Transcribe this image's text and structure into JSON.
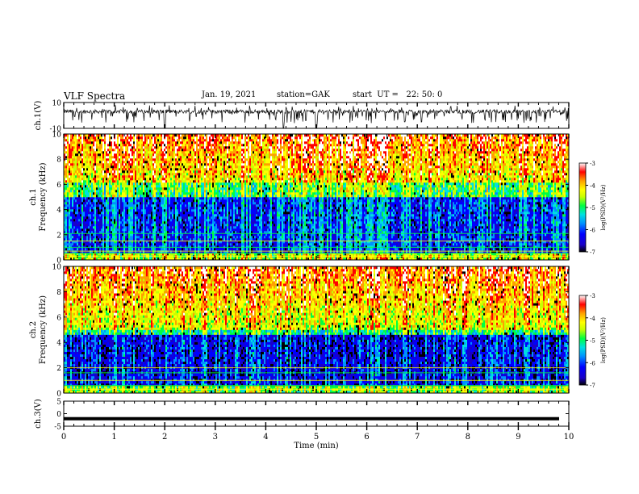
{
  "header": {
    "title": "VLF Spectra",
    "date": "Jan. 19, 2021",
    "station": "station=GAK",
    "start_time": "start  UT =   22: 50: 0"
  },
  "colors": {
    "spectrum_scale": [
      "#000000",
      "#1a00c8",
      "#0000ff",
      "#0090ff",
      "#00e0e0",
      "#00ff40",
      "#c8ff00",
      "#ffff00",
      "#ffa000",
      "#ff0000",
      "#ffffff"
    ]
  },
  "chart_data": [
    {
      "type": "line",
      "name": "ch1-waveform",
      "ylabel": "ch.1(V)",
      "ylim": [
        -10,
        10
      ],
      "yticks": [
        "10",
        "-10"
      ],
      "x_range": [
        0,
        10
      ],
      "baseline_level": 3,
      "variability": "noisy trace oscillating around +3 V with frequent downward spikes to about -6 V",
      "dropout_times_min": [
        2.0,
        4.35,
        5.0
      ]
    },
    {
      "type": "heatmap",
      "name": "ch1-spectrogram",
      "ylabel": "ch.1\nFrequency  (kHz)",
      "xlim": [
        0,
        10
      ],
      "ylim": [
        0,
        10
      ],
      "yticks": [
        "0",
        "2",
        "4",
        "6",
        "8",
        "10"
      ],
      "colorbar": {
        "label": "log(PSD)(V²/Hz)",
        "range": [
          -7,
          -3
        ],
        "ticks": [
          "-3",
          "-4",
          "-5",
          "-6",
          "-7"
        ]
      },
      "intense_band_kHz": [
        6,
        10
      ],
      "weak_band_kHz": [
        0.5,
        5
      ],
      "narrowband_lines_kHz": [
        0.3,
        0.5,
        0.7,
        1.0,
        1.5,
        2.1
      ]
    },
    {
      "type": "heatmap",
      "name": "ch2-spectrogram",
      "ylabel": "ch.2\nFrequency  (kHz)",
      "xlim": [
        0,
        10
      ],
      "ylim": [
        0,
        10
      ],
      "yticks": [
        "0",
        "2",
        "4",
        "6",
        "8",
        "10"
      ],
      "colorbar": {
        "label": "log(PSD)(V²/Hz)",
        "range": [
          -7,
          -3
        ],
        "ticks": [
          "-3",
          "-4",
          "-5",
          "-6",
          "-7"
        ]
      },
      "intense_band_kHz": [
        5,
        10
      ],
      "weak_band_kHz": [
        0.5,
        4.5
      ],
      "narrowband_lines_kHz": [
        0.3,
        0.6,
        1.0,
        1.6,
        2.0
      ]
    },
    {
      "type": "line",
      "name": "ch3-waveform",
      "ylabel": "ch.3(V)",
      "ylim": [
        -5,
        5
      ],
      "yticks": [
        "5",
        "0",
        "-5"
      ],
      "x_range": [
        0,
        10
      ],
      "level": -2
    }
  ],
  "xaxis": {
    "label": "Time  (min)",
    "ticks": [
      "0",
      "1",
      "2",
      "3",
      "4",
      "5",
      "6",
      "7",
      "8",
      "9",
      "10"
    ],
    "range": [
      0,
      10
    ]
  }
}
